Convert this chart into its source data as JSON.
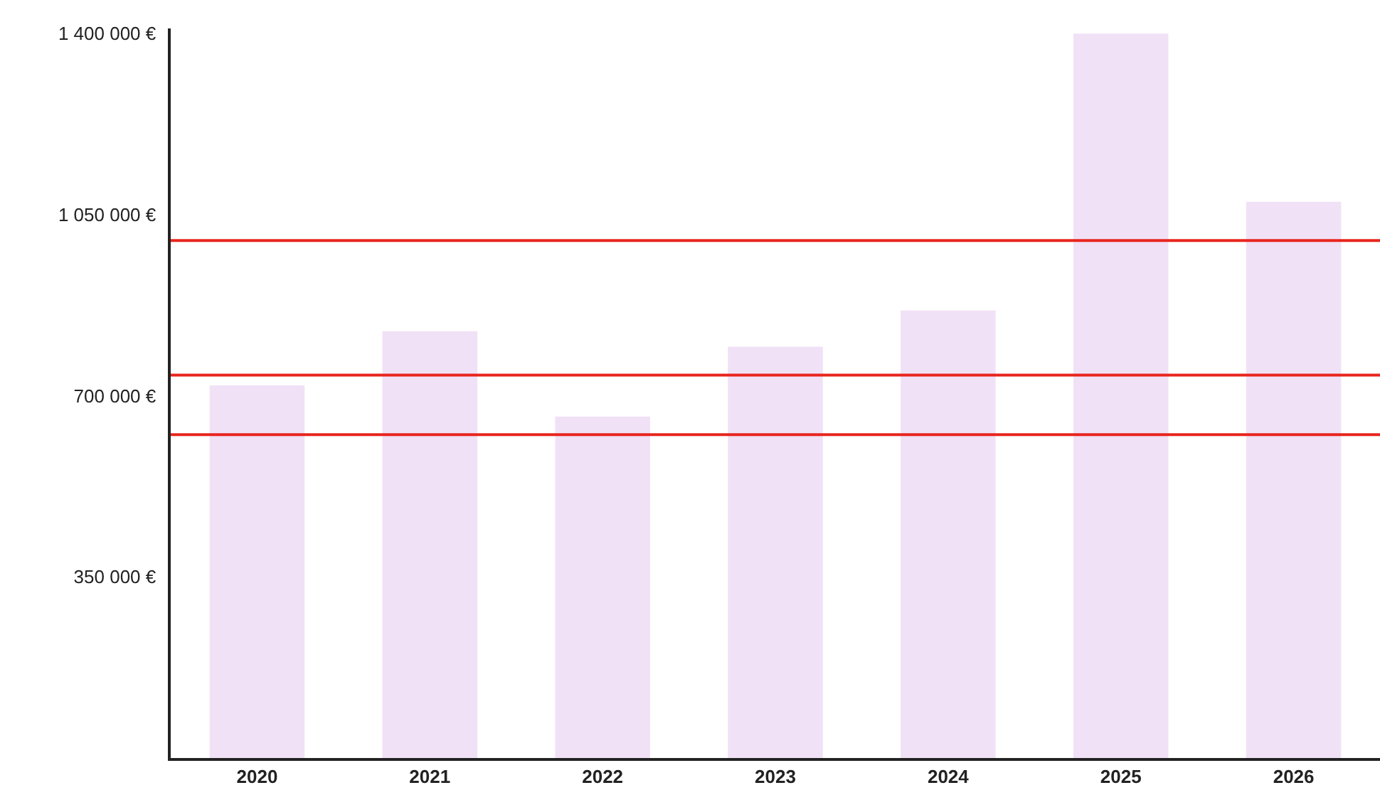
{
  "chart_data": {
    "type": "bar",
    "categories": [
      "2020",
      "2021",
      "2022",
      "2023",
      "2024",
      "2025",
      "2026"
    ],
    "values": [
      720000,
      825000,
      660000,
      795000,
      865000,
      1400000,
      1075000
    ],
    "color": "#f1e1f6",
    "ylim": [
      0,
      1410000
    ],
    "yticks": [
      {
        "value": 350000,
        "label": "350 000 €"
      },
      {
        "value": 700000,
        "label": "700 000 €"
      },
      {
        "value": 1050000,
        "label": "1 050 000 €"
      },
      {
        "value": 1400000,
        "label": "1 400 000 €"
      }
    ],
    "ref_lines": [
      {
        "axis": "y",
        "value": 1000000,
        "color": "#e8251e"
      },
      {
        "axis": "y",
        "value": 740000,
        "color": "#e8251e"
      },
      {
        "axis": "y",
        "value": 625000,
        "color": "#e8251e"
      }
    ]
  }
}
